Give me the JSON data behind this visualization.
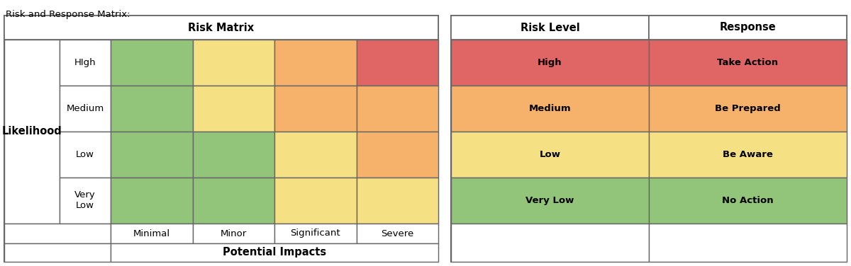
{
  "title_text": "Risk and Response Matrix:",
  "risk_matrix_title": "Risk Matrix",
  "likelihood_label": "Likelihood",
  "potential_impacts_label": "Potential Impacts",
  "risk_level_header": "Risk Level",
  "response_header": "Response",
  "likelihood_rows": [
    "HIgh",
    "Medium",
    "Low",
    "Very\nLow"
  ],
  "impact_cols": [
    "Minimal",
    "Minor",
    "Significant",
    "Severe"
  ],
  "risk_level_labels": [
    "High",
    "Medium",
    "Low",
    "Very Low"
  ],
  "response_labels": [
    "Take Action",
    "Be Prepared",
    "Be Aware",
    "No Action"
  ],
  "color_green": "#92C47A",
  "color_yellow": "#F6E084",
  "color_orange": "#F6B26B",
  "color_red": "#E06666",
  "matrix_colors": [
    [
      "#92C47A",
      "#F6E084",
      "#F6B26B",
      "#E06666"
    ],
    [
      "#92C47A",
      "#F6E084",
      "#F6B26B",
      "#F6B26B"
    ],
    [
      "#92C47A",
      "#92C47A",
      "#F6E084",
      "#F6B26B"
    ],
    [
      "#92C47A",
      "#92C47A",
      "#F6E084",
      "#F6E084"
    ]
  ],
  "risk_level_colors": [
    "#E06666",
    "#F6B26B",
    "#F6E084",
    "#92C47A"
  ],
  "response_colors": [
    "#E06666",
    "#F6B26B",
    "#F6E084",
    "#92C47A"
  ],
  "border_color": "#666666",
  "bg_color": "#FFFFFF",
  "text_color": "#000000",
  "title_fontsize": 9.5,
  "header_fontsize": 10.5,
  "cell_fontsize": 9.5,
  "fig_width": 12.0,
  "fig_height": 3.76,
  "dpi": 100
}
